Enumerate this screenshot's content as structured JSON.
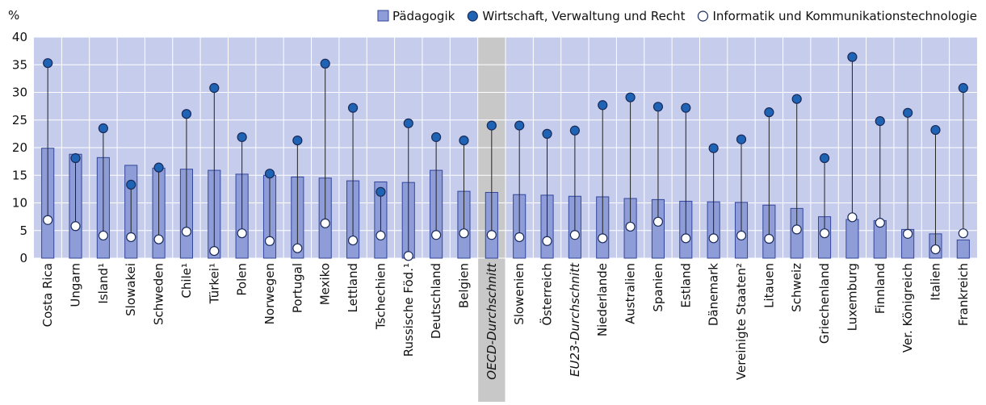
{
  "chart_data": {
    "type": "bar_dot",
    "y_label": "%",
    "categories": [
      "Costa Rica",
      "Ungarn",
      "Island¹",
      "Slowakei",
      "Schweden",
      "Chile¹",
      "Türkei¹",
      "Polen",
      "Norwegen",
      "Portugal",
      "Mexiko",
      "Lettland",
      "Tschechien",
      "Russische Föd.¹",
      "Deutschland",
      "Belgien",
      "OECD-Durchschnitt",
      "Slowenien",
      "Österreich",
      "EU23-Durchschnitt",
      "Niederlande",
      "Australien",
      "Spanien",
      "Estland",
      "Dänemark",
      "Vereinigte Staaten²",
      "Litauen",
      "Schweiz",
      "Griechenland",
      "Luxemburg",
      "Finnland",
      "Ver. Königreich",
      "Italien",
      "Frankreich"
    ],
    "highlight": [
      "OECD-Durchschnitt"
    ],
    "italic": [
      "OECD-Durchschnitt",
      "EU23-Durchschnitt"
    ],
    "series": [
      {
        "name": "Pädagogik",
        "mark": "bar",
        "color": "#8e9dd8",
        "values": [
          19.9,
          18.8,
          18.2,
          16.8,
          16.3,
          16.1,
          15.9,
          15.2,
          15.0,
          14.7,
          14.5,
          14.0,
          13.8,
          13.7,
          15.9,
          12.1,
          11.9,
          11.5,
          11.4,
          11.2,
          11.1,
          10.8,
          10.6,
          10.3,
          10.2,
          10.1,
          9.6,
          9.0,
          7.5,
          7.0,
          6.8,
          5.2,
          4.4,
          3.3
        ]
      },
      {
        "name": "Wirtschaft, Verwaltung und Recht",
        "mark": "dot",
        "color": "#1f64b4",
        "values": [
          35.3,
          18.1,
          23.5,
          13.3,
          16.4,
          26.1,
          30.8,
          21.9,
          15.3,
          21.3,
          35.2,
          27.2,
          12.0,
          24.4,
          21.9,
          21.3,
          24.0,
          24.0,
          22.5,
          23.1,
          27.7,
          29.1,
          27.4,
          27.2,
          19.9,
          21.5,
          26.4,
          28.8,
          18.1,
          36.4,
          24.8,
          26.3,
          23.2,
          30.8
        ]
      },
      {
        "name": "Informatik und Kommunikationstechnologie",
        "mark": "dot",
        "color": "#ffffff",
        "values": [
          6.9,
          5.8,
          4.1,
          3.8,
          3.4,
          4.8,
          1.3,
          4.5,
          3.1,
          1.8,
          6.3,
          3.2,
          4.1,
          0.4,
          4.2,
          4.5,
          4.2,
          3.8,
          3.1,
          4.2,
          3.6,
          5.7,
          6.6,
          3.6,
          3.6,
          4.1,
          3.5,
          5.2,
          4.5,
          7.4,
          6.4,
          4.4,
          1.6,
          4.5
        ]
      }
    ],
    "ylim": [
      0,
      40
    ],
    "yticks": [
      0,
      5,
      10,
      15,
      20,
      25,
      30,
      35,
      40
    ],
    "grid": true,
    "legend": "top-right"
  }
}
